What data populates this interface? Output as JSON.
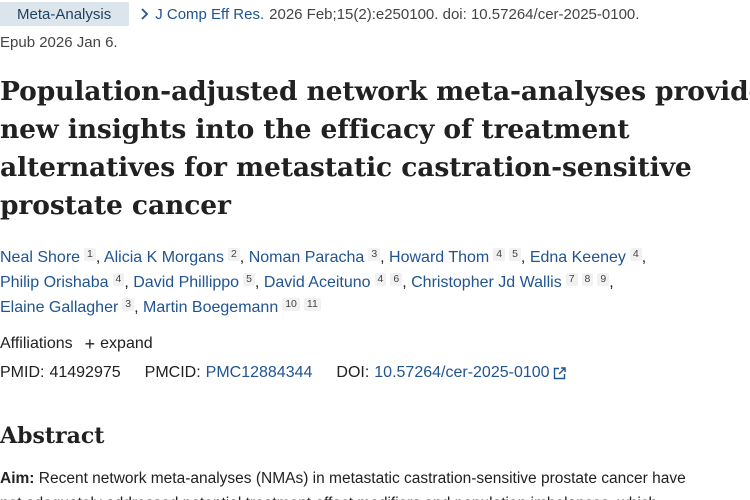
{
  "header": {
    "article_type": "Meta-Analysis",
    "journal": "J Comp Eff Res.",
    "citation": "2026 Feb;15(2):e250100. doi: 10.57264/cer-2025-0100.",
    "epub": "Epub 2026 Jan 6."
  },
  "title_lines": [
    "Population-adjusted network meta-analyses provide",
    "new insights into the efficacy of treatment",
    "alternatives for metastatic castration-sensitive",
    "prostate cancer"
  ],
  "authors": [
    {
      "name": "Neal Shore",
      "refs": [
        "1"
      ]
    },
    {
      "name": "Alicia K Morgans",
      "refs": [
        "2"
      ]
    },
    {
      "name": "Noman Paracha",
      "refs": [
        "3"
      ]
    },
    {
      "name": "Howard Thom",
      "refs": [
        "4",
        "5"
      ]
    },
    {
      "name": "Edna Keeney",
      "refs": [
        "4"
      ]
    },
    {
      "name": "Philip Orishaba",
      "refs": [
        "4"
      ]
    },
    {
      "name": "David Phillippo",
      "refs": [
        "5"
      ]
    },
    {
      "name": "David Aceituno",
      "refs": [
        "4",
        "6"
      ]
    },
    {
      "name": "Christopher Jd Wallis",
      "refs": [
        "7",
        "8",
        "9"
      ]
    },
    {
      "name": "Elaine Gallagher",
      "refs": [
        "3"
      ]
    },
    {
      "name": "Martin Boegemann",
      "refs": [
        "10",
        "11"
      ]
    }
  ],
  "affiliations": {
    "label": "Affiliations",
    "expand_label": "expand"
  },
  "identifiers": {
    "pmid_label": "PMID:",
    "pmid": "41492975",
    "pmcid_label": "PMCID:",
    "pmcid": "PMC12884344",
    "doi_label": "DOI:",
    "doi": "10.57264/cer-2025-0100"
  },
  "abstract": {
    "heading": "Abstract",
    "aim_label": "Aim:",
    "aim_line1": "Recent network meta-analyses (NMAs) in metastatic castration-sensitive prostate cancer have",
    "aim_line2": "not adequately addressed potential treatment effect modifiers and population imbalances, which"
  },
  "colors": {
    "link": "#205493",
    "badge_bg": "#dde5ec",
    "text": "#212121"
  }
}
